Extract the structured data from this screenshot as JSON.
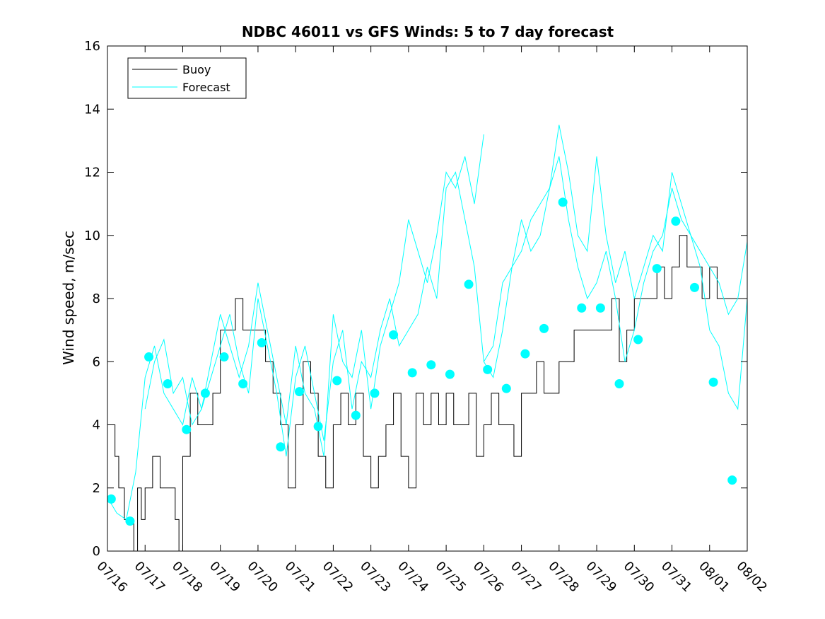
{
  "chart_data": {
    "type": "line",
    "title": "NDBC 46011 vs GFS Winds: 5 to 7 day forecast",
    "xlabel": "",
    "ylabel": "Wind speed, m/sec",
    "xlim": [
      0,
      17
    ],
    "ylim": [
      0,
      16
    ],
    "y_ticks": [
      0,
      2,
      4,
      6,
      8,
      10,
      12,
      14,
      16
    ],
    "x_ticks": [
      {
        "value": 0,
        "label": "07/16"
      },
      {
        "value": 1,
        "label": "07/17"
      },
      {
        "value": 2,
        "label": "07/18"
      },
      {
        "value": 3,
        "label": "07/19"
      },
      {
        "value": 4,
        "label": "07/20"
      },
      {
        "value": 5,
        "label": "07/21"
      },
      {
        "value": 6,
        "label": "07/22"
      },
      {
        "value": 7,
        "label": "07/23"
      },
      {
        "value": 8,
        "label": "07/24"
      },
      {
        "value": 9,
        "label": "07/25"
      },
      {
        "value": 10,
        "label": "07/26"
      },
      {
        "value": 11,
        "label": "07/27"
      },
      {
        "value": 12,
        "label": "07/28"
      },
      {
        "value": 13,
        "label": "07/29"
      },
      {
        "value": 14,
        "label": "07/30"
      },
      {
        "value": 15,
        "label": "07/31"
      },
      {
        "value": 16,
        "label": "08/01"
      },
      {
        "value": 17,
        "label": "08/02"
      }
    ],
    "legend": {
      "position": "top-left",
      "entries": [
        {
          "label": "Buoy",
          "color": "#000000"
        },
        {
          "label": "Forecast",
          "color": "#00ffff"
        }
      ]
    },
    "grid": false,
    "series": [
      {
        "name": "Buoy",
        "color": "#000000",
        "style": "step",
        "x": [
          0.0,
          0.2,
          0.3,
          0.45,
          0.55,
          0.7,
          0.8,
          0.9,
          1.0,
          1.2,
          1.4,
          1.6,
          1.8,
          1.9,
          2.0,
          2.2,
          2.4,
          2.6,
          2.8,
          3.0,
          3.2,
          3.4,
          3.6,
          3.8,
          4.0,
          4.2,
          4.4,
          4.6,
          4.8,
          5.0,
          5.2,
          5.4,
          5.6,
          5.8,
          6.0,
          6.2,
          6.4,
          6.6,
          6.8,
          7.0,
          7.2,
          7.4,
          7.6,
          7.8,
          8.0,
          8.2,
          8.4,
          8.6,
          8.8,
          9.0,
          9.2,
          9.4,
          9.6,
          9.8,
          10.0,
          10.2,
          10.4,
          10.6,
          10.8,
          11.0,
          11.2,
          11.4,
          11.6,
          11.8,
          12.0,
          12.2,
          12.4,
          12.6,
          12.8,
          13.0,
          13.2,
          13.4,
          13.6,
          13.8,
          14.0,
          14.2,
          14.4,
          14.6,
          14.8,
          15.0,
          15.2,
          15.4,
          15.6,
          15.8,
          16.0,
          16.2,
          16.4,
          16.6,
          16.8,
          17.0
        ],
        "y": [
          4,
          3,
          2,
          1,
          1,
          0,
          2,
          1,
          2,
          3,
          2,
          2,
          1,
          0,
          3,
          5,
          4,
          4,
          5,
          7,
          7,
          8,
          7,
          7,
          7,
          6,
          5,
          4,
          2,
          4,
          6,
          5,
          3,
          2,
          4,
          5,
          4,
          5,
          3,
          2,
          3,
          4,
          5,
          3,
          2,
          5,
          4,
          5,
          4,
          5,
          4,
          4,
          5,
          3,
          4,
          5,
          4,
          4,
          3,
          5,
          5,
          6,
          5,
          5,
          6,
          6,
          7,
          7,
          7,
          7,
          7,
          8,
          6,
          7,
          8,
          8,
          8,
          9,
          8,
          9,
          10,
          9,
          9,
          8,
          9,
          8,
          8,
          8,
          8,
          8
        ]
      },
      {
        "name": "Forecast",
        "color": "#00ffff",
        "style": "line",
        "x": [
          0.0,
          0.25,
          0.5,
          0.75,
          1.0,
          1.25,
          1.5,
          1.75,
          2.0,
          2.25,
          2.5,
          2.75,
          3.0,
          3.25,
          3.5,
          3.75,
          4.0,
          4.25,
          4.5,
          4.75,
          5.0,
          5.25,
          5.5,
          5.75,
          6.0,
          6.25,
          6.5,
          6.75,
          7.0,
          7.25,
          7.5,
          7.75,
          8.0,
          8.25,
          8.5,
          8.75,
          9.0,
          9.25,
          9.5,
          9.75,
          10.0,
          10.25,
          10.5,
          10.75,
          11.0,
          11.25,
          11.5,
          11.75,
          12.0,
          12.25,
          12.5,
          12.75,
          13.0,
          13.25,
          13.5,
          13.75,
          14.0,
          14.25,
          14.5,
          14.75,
          15.0,
          15.25,
          15.5,
          15.75,
          16.0,
          16.25,
          16.5,
          16.75,
          17.0
        ],
        "y": [
          1.7,
          1.2,
          1.0,
          2.5,
          5.5,
          6.5,
          5.0,
          4.5,
          4.0,
          5.5,
          4.5,
          5.5,
          6.5,
          7.5,
          6.0,
          5.0,
          8.0,
          6.5,
          5.0,
          3.0,
          5.5,
          6.5,
          5.0,
          3.5,
          6.0,
          7.0,
          4.5,
          6.0,
          5.5,
          7.0,
          8.0,
          6.5,
          7.0,
          7.5,
          9.0,
          8.0,
          11.5,
          12.0,
          10.5,
          9.0,
          6.0,
          5.5,
          7.0,
          9.0,
          9.5,
          10.5,
          11.0,
          11.5,
          12.5,
          10.5,
          9.0,
          8.0,
          8.5,
          9.5,
          8.0,
          6.0,
          7.0,
          8.5,
          9.5,
          10.0,
          11.5,
          10.5,
          10.0,
          9.0,
          7.0,
          6.5,
          5.0,
          4.5,
          8.0
        ]
      },
      {
        "name": "",
        "color": "#00ffff",
        "style": "line",
        "x": [
          1.0,
          1.25,
          1.5,
          1.75,
          2.0,
          2.25,
          2.5,
          2.75,
          3.0,
          3.25,
          3.5,
          3.75,
          4.0,
          4.25,
          4.5,
          4.75,
          5.0,
          5.25,
          5.5,
          5.75,
          6.0,
          6.25,
          6.5,
          6.75,
          7.0,
          7.25,
          7.5,
          7.75,
          8.0,
          8.25,
          8.5,
          8.75,
          9.0,
          9.25,
          9.5,
          9.75,
          10.0
        ],
        "y": [
          4.5,
          6.0,
          6.7,
          5.0,
          5.5,
          4.0,
          4.5,
          6.0,
          7.5,
          6.5,
          5.5,
          6.5,
          8.5,
          7.0,
          5.5,
          4.0,
          6.5,
          5.0,
          4.5,
          3.0,
          7.5,
          6.0,
          5.5,
          7.0,
          4.5,
          6.5,
          7.5,
          8.5,
          10.5,
          9.5,
          8.5,
          10.0,
          12.0,
          11.5,
          12.5,
          11.0,
          13.2
        ]
      },
      {
        "name": "",
        "color": "#00ffff",
        "style": "line",
        "x": [
          10.0,
          10.25,
          10.5,
          10.75,
          11.0,
          11.25,
          11.5,
          11.75,
          12.0,
          12.25,
          12.5,
          12.75,
          13.0,
          13.25,
          13.5,
          13.75,
          14.0,
          14.25,
          14.5,
          14.75,
          15.0,
          15.25,
          15.5,
          15.75,
          16.0,
          16.25,
          16.5,
          16.75,
          17.0
        ],
        "y": [
          6.0,
          6.5,
          8.5,
          9.0,
          10.5,
          9.5,
          10.0,
          11.5,
          13.5,
          12.0,
          10.0,
          9.5,
          12.5,
          10.0,
          8.5,
          9.5,
          8.0,
          9.0,
          10.0,
          9.5,
          12.0,
          11.0,
          10.0,
          9.5,
          9.0,
          8.5,
          7.5,
          8.0,
          9.8
        ]
      }
    ],
    "markers": {
      "name": "",
      "color": "#00ffff",
      "x": [
        0.1,
        0.6,
        1.1,
        1.6,
        2.1,
        2.6,
        3.1,
        3.6,
        4.1,
        4.6,
        5.1,
        5.6,
        6.1,
        6.6,
        7.1,
        7.6,
        8.1,
        8.6,
        9.1,
        9.6,
        10.1,
        10.6,
        11.1,
        11.6,
        12.1,
        12.6,
        13.1,
        13.6,
        14.1,
        14.6,
        15.1,
        15.6,
        16.1,
        16.6
      ],
      "y": [
        1.65,
        0.95,
        6.15,
        5.3,
        3.85,
        5.0,
        6.15,
        5.3,
        6.6,
        3.3,
        5.05,
        3.95,
        5.4,
        4.3,
        5.0,
        6.85,
        5.65,
        5.9,
        5.6,
        8.45,
        5.75,
        5.15,
        6.25,
        7.05,
        11.05,
        7.7,
        7.7,
        5.3,
        6.7,
        8.95,
        10.45,
        8.35,
        5.35,
        2.25
      ]
    }
  }
}
